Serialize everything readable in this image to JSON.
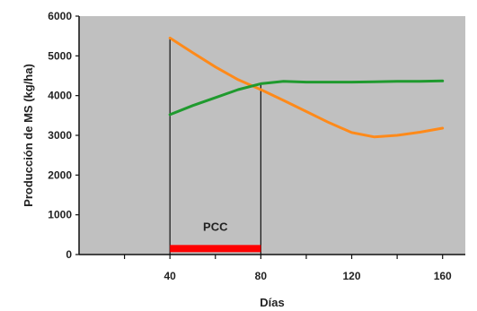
{
  "chart_data": {
    "type": "line",
    "title": "",
    "xlabel": "Días",
    "ylabel": "Producción de MS (kg/ha)",
    "xlim": [
      0,
      170
    ],
    "ylim": [
      0,
      6000
    ],
    "xticks": [
      40,
      80,
      120,
      160
    ],
    "yticks": [
      0,
      1000,
      2000,
      3000,
      4000,
      5000,
      6000
    ],
    "grid": false,
    "legend": "none",
    "series": [
      {
        "color": "#ff8a1a",
        "x": [
          40,
          50,
          60,
          70,
          80,
          90,
          100,
          110,
          120,
          130,
          140,
          150,
          160
        ],
        "y": [
          5450,
          5080,
          4720,
          4400,
          4150,
          3880,
          3600,
          3320,
          3070,
          2960,
          3000,
          3080,
          3180
        ]
      },
      {
        "color": "#1f9a2e",
        "x": [
          40,
          50,
          60,
          70,
          80,
          90,
          100,
          110,
          120,
          130,
          140,
          150,
          160
        ],
        "y": [
          3520,
          3750,
          3950,
          4150,
          4300,
          4360,
          4340,
          4340,
          4340,
          4350,
          4360,
          4360,
          4370
        ]
      }
    ],
    "markers": {
      "vlines": [
        {
          "x": 40,
          "y_top": 5450
        },
        {
          "x": 80,
          "y_top": 4300
        }
      ],
      "bar": {
        "x_start": 40,
        "x_end": 80,
        "y": 150,
        "color": "#ff0000"
      },
      "annotation": {
        "text": "PCC",
        "x": 60,
        "y": 600
      }
    },
    "colors": {
      "plot_bg": "#c0c0c0",
      "axis": "#111111"
    }
  }
}
